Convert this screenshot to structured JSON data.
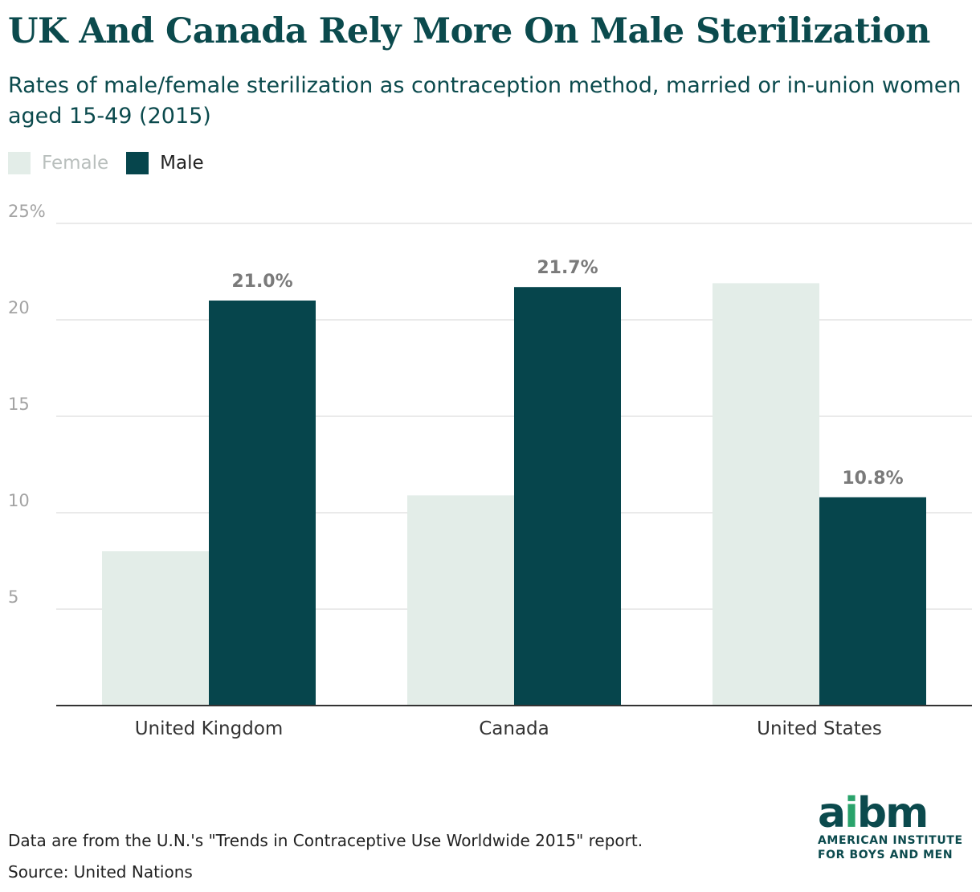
{
  "header": {
    "title": "UK And Canada Rely More On Male Sterilization",
    "subtitle": "Rates of male/female sterilization as contraception method, married or in-union women aged 15-49 (2015)"
  },
  "legend": {
    "female": "Female",
    "male": "Male"
  },
  "colors": {
    "female": "#e3ede8",
    "male": "#06454c",
    "grid": "#e4e4e4",
    "axis": "#333333",
    "tick": "#a3a3a3",
    "label": "#7a7a7a"
  },
  "chart_data": {
    "type": "bar",
    "title": "UK And Canada Rely More On Male Sterilization",
    "categories": [
      "United Kingdom",
      "Canada",
      "United States"
    ],
    "series": [
      {
        "name": "Female",
        "values": [
          8.0,
          10.9,
          21.9
        ]
      },
      {
        "name": "Male",
        "values": [
          21.0,
          21.7,
          10.8
        ]
      }
    ],
    "data_labels": {
      "Male": [
        "21.0%",
        "21.7%",
        "10.8%"
      ]
    },
    "yticks": [
      {
        "value": 5,
        "label": "5"
      },
      {
        "value": 10,
        "label": "10"
      },
      {
        "value": 15,
        "label": "15"
      },
      {
        "value": 20,
        "label": "20"
      },
      {
        "value": 25,
        "label": "25%"
      }
    ],
    "ylim": [
      0,
      25
    ],
    "xlabel": "",
    "ylabel": "",
    "grid": true,
    "legend_position": "top-left"
  },
  "footer": {
    "note": "Data are from the U.N.'s \"Trends in Contraceptive Use Worldwide 2015\" report.",
    "source": "Source: United Nations"
  },
  "logo": {
    "mark_a": "a",
    "mark_i": "i",
    "mark_bm": "bm",
    "line1": "AMERICAN INSTITUTE",
    "line2": "FOR BOYS AND MEN"
  }
}
